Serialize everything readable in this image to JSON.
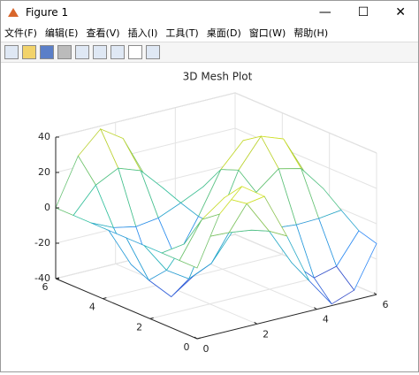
{
  "window": {
    "title": "Figure 1",
    "menu": [
      "文件(F)",
      "编辑(E)",
      "查看(V)",
      "插入(I)",
      "工具(T)",
      "桌面(D)",
      "窗口(W)",
      "帮助(H)"
    ]
  },
  "chart_data": {
    "type": "mesh3d",
    "title": "3D Mesh Plot",
    "x": [
      0,
      0.75,
      1.5,
      2.25,
      3,
      3.75,
      4.5,
      5.25,
      6
    ],
    "y": [
      0,
      0.75,
      1.5,
      2.25,
      3,
      3.75,
      4.5,
      5.25,
      6
    ],
    "z": [
      [
        0,
        27.3,
        39.9,
        31.1,
        5.6,
        -22.9,
        -39.1,
        -34.4,
        -11.2
      ],
      [
        0,
        20.0,
        29.2,
        22.8,
        4.1,
        -16.8,
        -28.6,
        -25.2,
        -8.2
      ],
      [
        0,
        1.9,
        2.8,
        2.2,
        0.4,
        -1.6,
        -2.8,
        -2.4,
        -0.8
      ],
      [
        0,
        -17.1,
        -25.1,
        -19.5,
        -3.5,
        14.4,
        24.6,
        21.6,
        7.0
      ],
      [
        0,
        -27.0,
        -39.5,
        -30.8,
        -5.5,
        22.7,
        38.7,
        34.1,
        11.1
      ],
      [
        0,
        -22.4,
        -32.8,
        -25.5,
        -4.6,
        18.8,
        32.1,
        28.2,
        9.2
      ],
      [
        0,
        -5.8,
        -8.4,
        -6.6,
        -1.2,
        4.8,
        8.3,
        7.3,
        2.4
      ],
      [
        0,
        14.0,
        20.4,
        15.9,
        2.9,
        -11.7,
        -20.0,
        -17.6,
        -5.7
      ],
      [
        0,
        26.2,
        38.3,
        29.9,
        5.4,
        -22.0,
        -37.5,
        -33.0,
        -10.8
      ]
    ],
    "xlim": [
      0,
      6
    ],
    "ylim": [
      0,
      6
    ],
    "zlim": [
      -40,
      40
    ],
    "xticks": [
      0,
      2,
      4,
      6
    ],
    "yticks": [
      0,
      2,
      4,
      6
    ],
    "zticks": [
      -40,
      -20,
      0,
      20,
      40
    ],
    "grid": true,
    "colormap": [
      "#3e26a8",
      "#2e87f7",
      "#27bfac",
      "#a6c43a",
      "#f9fb15"
    ]
  }
}
